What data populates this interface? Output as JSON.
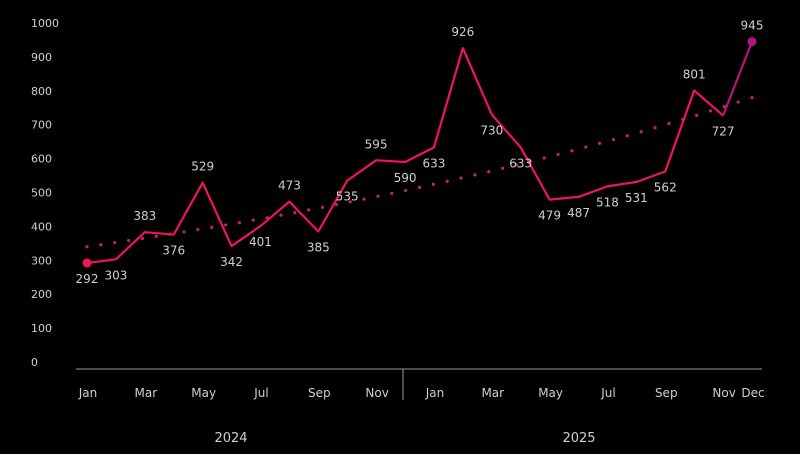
{
  "chart_data": {
    "type": "line",
    "title": "",
    "xlabel": "",
    "ylabel": "",
    "ylim": [
      0,
      1000
    ],
    "yticks": [
      0,
      100,
      200,
      300,
      400,
      500,
      600,
      700,
      800,
      900,
      1000
    ],
    "grid": false,
    "legend": "none",
    "years": [
      "2024",
      "2025"
    ],
    "x": [
      "Jan",
      "Feb",
      "Mar",
      "Apr",
      "May",
      "Jun",
      "Jul",
      "Aug",
      "Sep",
      "Oct",
      "Nov",
      "Dec",
      "Jan",
      "Feb",
      "Mar",
      "Apr",
      "May",
      "Jun",
      "Jul",
      "Aug",
      "Sep",
      "Oct",
      "Nov",
      "Dec"
    ],
    "x_tick_labels": [
      "Jan",
      "Mar",
      "May",
      "Jul",
      "Sep",
      "Nov",
      "Jan",
      "Mar",
      "May",
      "Jul",
      "Sep",
      "Nov",
      "Dec"
    ],
    "series": [
      {
        "values": [
          292,
          303,
          383,
          376,
          529,
          342,
          401,
          473,
          385,
          535,
          595,
          590,
          633,
          926,
          730,
          633,
          479,
          487,
          518,
          531,
          562,
          801,
          727,
          945
        ]
      }
    ],
    "trendline": {
      "style": "dotted",
      "start": 340,
      "end": 780
    },
    "colors": {
      "line": "#f0145a",
      "last_segment": "#b8127e",
      "trend": "#c2207c",
      "text": "#cfcfcf",
      "axis": "#9a9a9a"
    }
  }
}
